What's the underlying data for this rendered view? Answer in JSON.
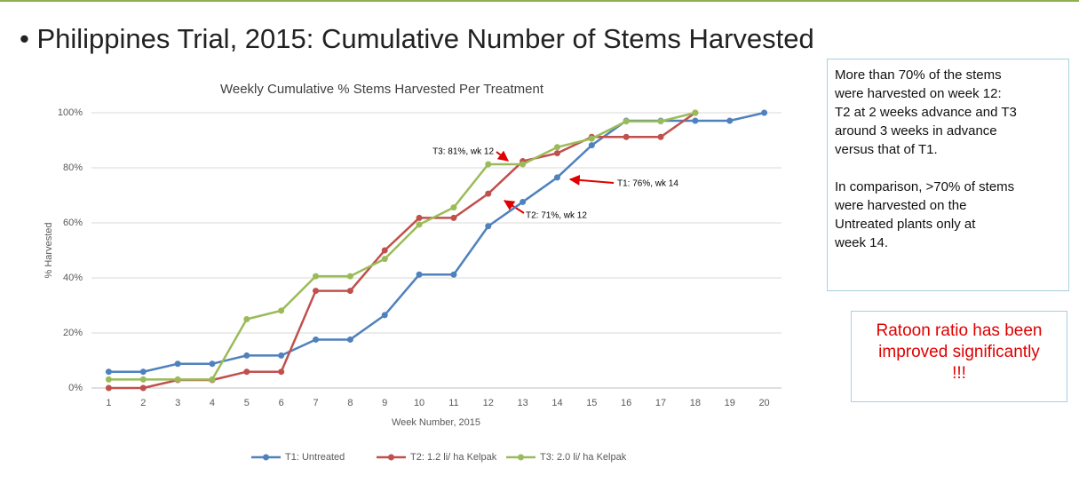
{
  "heading": "• Philippines Trial, 2015: Cumulative Number of Stems Harvested",
  "chart_data": {
    "type": "line",
    "title": "Weekly Cumulative % Stems Harvested Per Treatment",
    "xlabel": "Week Number, 2015",
    "ylabel": "% Harvested",
    "x": [
      1,
      2,
      3,
      4,
      5,
      6,
      7,
      8,
      9,
      10,
      11,
      12,
      13,
      14,
      15,
      16,
      17,
      18,
      19,
      20
    ],
    "xlim": [
      0.5,
      20.5
    ],
    "xticks": [
      1,
      2,
      3,
      4,
      5,
      6,
      7,
      8,
      9,
      10,
      11,
      12,
      13,
      14,
      15,
      16,
      17,
      18,
      19,
      20
    ],
    "ylim": [
      0,
      100
    ],
    "yticks": [
      {
        "value": 0,
        "label": "0%"
      },
      {
        "value": 20,
        "label": "20%"
      },
      {
        "value": 40,
        "label": "40%"
      },
      {
        "value": 60,
        "label": "60%"
      },
      {
        "value": 80,
        "label": "80%"
      },
      {
        "value": 100,
        "label": "100%"
      }
    ],
    "grid": true,
    "legend": "bottom",
    "series": [
      {
        "name": "T1: Untreated",
        "color": "#4f81bd",
        "values": [
          5.9,
          5.9,
          8.8,
          8.8,
          11.8,
          11.8,
          17.6,
          17.6,
          26.5,
          41.2,
          41.2,
          58.8,
          67.6,
          76.5,
          88.2,
          97.1,
          97.1,
          97.1,
          97.1,
          100
        ]
      },
      {
        "name": "T2: 1.2 li/ ha Kelpak",
        "color": "#c0504d",
        "values": [
          0,
          0,
          2.9,
          2.9,
          5.9,
          5.9,
          35.3,
          35.3,
          50.0,
          61.8,
          61.8,
          70.6,
          82.4,
          85.3,
          91.2,
          91.2,
          91.2,
          100,
          null,
          null
        ]
      },
      {
        "name": "T3: 2.0 li/ ha Kelpak",
        "color": "#9bbb59",
        "values": [
          3.1,
          3.1,
          3.1,
          3.1,
          25.0,
          28.1,
          40.6,
          40.6,
          46.9,
          59.4,
          65.6,
          81.3,
          81.3,
          87.5,
          90.6,
          96.9,
          96.9,
          100,
          null,
          null
        ]
      }
    ],
    "annotations": [
      "T3: 81%, wk 12",
      "T1: 76%, wk 14",
      "T2: 71%, wk 12"
    ]
  },
  "notes": {
    "paragraphs": [
      [
        "More than 70% of the stems",
        "were harvested on week 12:",
        "T2 at 2 weeks advance and T3",
        "around 3 weeks in advance",
        "versus that of T1."
      ],
      [
        "In comparison, >70% of stems",
        "were harvested on the",
        "Untreated plants only at",
        "week 14."
      ]
    ]
  },
  "callout": [
    "Ratoon ratio has been",
    "improved significantly",
    "!!!"
  ]
}
